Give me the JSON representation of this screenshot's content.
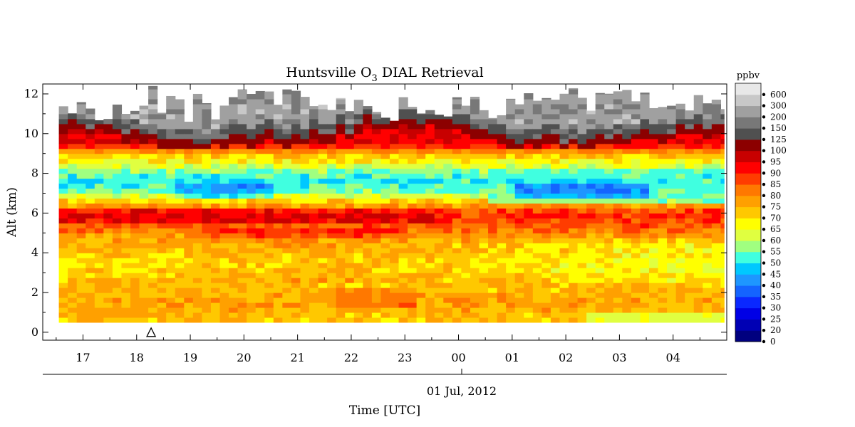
{
  "chart_data": {
    "type": "heatmap",
    "title_main": "Huntsville O",
    "title_sub": "3",
    "title_rest": " DIAL Retrieval",
    "ylabel": "Alt (km)",
    "xlabel": "Time [UTC]",
    "date_label": "01 Jul, 2012",
    "colorbar_unit": "ppbv",
    "y_ticks": [
      "0",
      "2",
      "4",
      "6",
      "8",
      "10",
      "12"
    ],
    "y_range_km": [
      -0.4,
      12.5
    ],
    "x_range_hr": [
      16.25,
      29.0
    ],
    "x_ticks": [
      {
        "label": "17",
        "hr": 17
      },
      {
        "label": "18",
        "hr": 18
      },
      {
        "label": "19",
        "hr": 19
      },
      {
        "label": "20",
        "hr": 20
      },
      {
        "label": "21",
        "hr": 21
      },
      {
        "label": "22",
        "hr": 22
      },
      {
        "label": "23",
        "hr": 23
      },
      {
        "label": "00",
        "hr": 24
      },
      {
        "label": "01",
        "hr": 25
      },
      {
        "label": "02",
        "hr": 26
      },
      {
        "label": "03",
        "hr": 27
      },
      {
        "label": "04",
        "hr": 28
      }
    ],
    "colorbar_levels": [
      "0",
      "20",
      "25",
      "30",
      "35",
      "40",
      "45",
      "50",
      "55",
      "60",
      "65",
      "70",
      "75",
      "80",
      "85",
      "90",
      "95",
      "100",
      "125",
      "150",
      "200",
      "300",
      "600"
    ],
    "colorbar_colors": [
      "#00007f",
      "#0000b4",
      "#0000e6",
      "#0a28ff",
      "#1464ff",
      "#1e96ff",
      "#00c8ff",
      "#40ffe0",
      "#a0ff80",
      "#e0ff40",
      "#ffff00",
      "#ffc800",
      "#ffa000",
      "#ff7800",
      "#ff3c00",
      "#ff0000",
      "#c80000",
      "#8c0000",
      "#505050",
      "#787878",
      "#a0a0a0",
      "#c8c8c8",
      "#e8e8e8"
    ],
    "data_start_hr": 16.55,
    "data_end_hr": 28.95,
    "data_bottom_km": 0.5,
    "column_step_hr": 0.1667,
    "row_step_km": 0.25,
    "marker": {
      "symbol": "triangle",
      "hr": 18.27,
      "alt_km": 0
    },
    "ozone_profile_anchors_ppbv": [
      {
        "alt_km": 0.5,
        "value": 73
      },
      {
        "alt_km": 1.5,
        "value": 77
      },
      {
        "alt_km": 2.5,
        "value": 73
      },
      {
        "alt_km": 3.5,
        "value": 68
      },
      {
        "alt_km": 4.5,
        "value": 73
      },
      {
        "alt_km": 5.5,
        "value": 87
      },
      {
        "alt_km": 6.0,
        "value": 90
      },
      {
        "alt_km": 6.5,
        "value": 75
      },
      {
        "alt_km": 7.0,
        "value": 58
      },
      {
        "alt_km": 7.5,
        "value": 50
      },
      {
        "alt_km": 8.0,
        "value": 55
      },
      {
        "alt_km": 8.5,
        "value": 65
      },
      {
        "alt_km": 9.0,
        "value": 75
      },
      {
        "alt_km": 9.5,
        "value": 95
      }
    ],
    "features": [
      {
        "name": "low-altitude-blue-layer",
        "hr_range": [
          25.8,
          27.2
        ],
        "alt_km_range": [
          7.0,
          7.8
        ],
        "value": 40
      },
      {
        "name": "surface-cyan-layer",
        "hr_range": [
          26.4,
          29.0
        ],
        "alt_km_range": [
          0.5,
          1.0
        ],
        "value": 57
      },
      {
        "name": "boundary-layer-maximum",
        "hr_range": [
          21.8,
          23.2
        ],
        "alt_km_range": [
          1.3,
          2.3
        ],
        "value": 85
      },
      {
        "name": "upper-cyan-band",
        "hr_range": [
          24.5,
          29.0
        ],
        "alt_km_range": [
          6.6,
          8.3
        ],
        "value": 52
      }
    ]
  }
}
